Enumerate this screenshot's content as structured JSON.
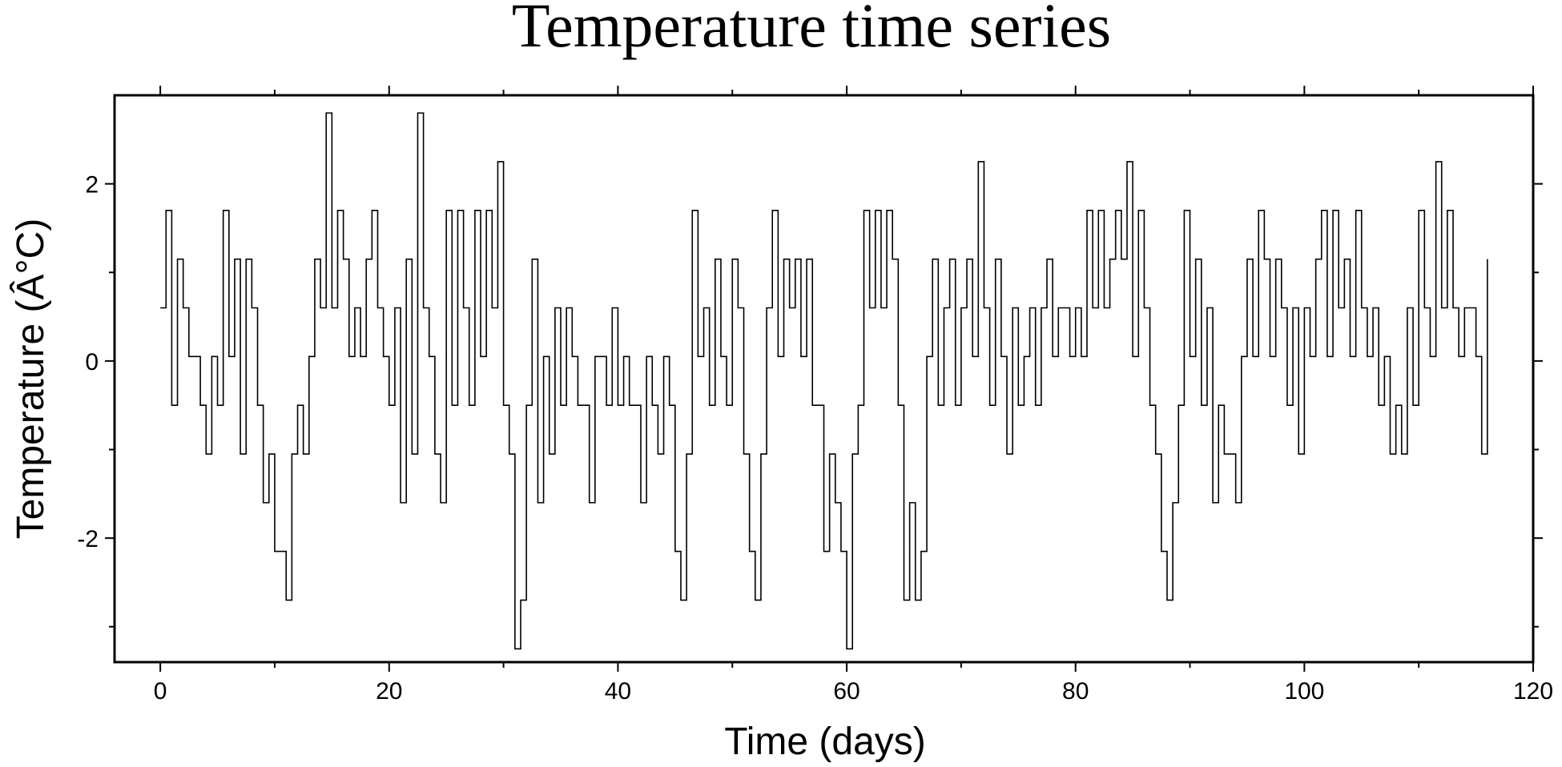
{
  "chart_data": {
    "type": "step",
    "title": "Temperature time series",
    "xlabel": "Time (days)",
    "ylabel": "Temperature (Â°C)",
    "xlim": [
      -4,
      120
    ],
    "ylim": [
      -3.4,
      3
    ],
    "xticks": [
      0,
      20,
      40,
      60,
      80,
      100,
      120
    ],
    "yticks": [
      -2,
      0,
      2
    ],
    "xticks_minor": [
      10,
      30,
      50,
      70,
      90,
      110
    ],
    "yticks_minor": [
      -3,
      -1,
      1
    ],
    "grid": false,
    "color": "#000000",
    "x": [
      0,
      0.5,
      1,
      1.5,
      2,
      2.5,
      3,
      3.5,
      4,
      4.5,
      5,
      5.5,
      6,
      6.5,
      7,
      7.5,
      8,
      8.5,
      9,
      9.5,
      10,
      10.5,
      11,
      11.5,
      12,
      12.5,
      13,
      13.5,
      14,
      14.5,
      15,
      15.5,
      16,
      16.5,
      17,
      17.5,
      18,
      18.5,
      19,
      19.5,
      20,
      20.5,
      21,
      21.5,
      22,
      22.5,
      23,
      23.5,
      24,
      24.5,
      25,
      25.5,
      26,
      26.5,
      27,
      27.5,
      28,
      28.5,
      29,
      29.5,
      30,
      30.5,
      31,
      31.5,
      32,
      32.5,
      33,
      33.5,
      34,
      34.5,
      35,
      35.5,
      36,
      36.5,
      37,
      37.5,
      38,
      38.5,
      39,
      39.5,
      40,
      40.5,
      41,
      41.5,
      42,
      42.5,
      43,
      43.5,
      44,
      44.5,
      45,
      45.5,
      46,
      46.5,
      47,
      47.5,
      48,
      48.5,
      49,
      49.5,
      50,
      50.5,
      51,
      51.5,
      52,
      52.5,
      53,
      53.5,
      54,
      54.5,
      55,
      55.5,
      56,
      56.5,
      57,
      57.5,
      58,
      58.5,
      59,
      59.5,
      60,
      60.5,
      61,
      61.5,
      62,
      62.5,
      63,
      63.5,
      64,
      64.5,
      65,
      65.5,
      66,
      66.5,
      67,
      67.5,
      68,
      68.5,
      69,
      69.5,
      70,
      70.5,
      71,
      71.5,
      72,
      72.5,
      73,
      73.5,
      74,
      74.5,
      75,
      75.5,
      76,
      76.5,
      77,
      77.5,
      78,
      78.5,
      79,
      79.5,
      80,
      80.5,
      81,
      81.5,
      82,
      82.5,
      83,
      83.5,
      84,
      84.5,
      85,
      85.5,
      86,
      86.5,
      87,
      87.5,
      88,
      88.5,
      89,
      89.5,
      90,
      90.5,
      91,
      91.5,
      92,
      92.5,
      93,
      93.5,
      94,
      94.5,
      95,
      95.5,
      96,
      96.5,
      97,
      97.5,
      98,
      98.5,
      99,
      99.5,
      100,
      100.5,
      101,
      101.5,
      102,
      102.5,
      103,
      103.5,
      104,
      104.5,
      105,
      105.5,
      106,
      106.5,
      107,
      107.5,
      108,
      108.5,
      109,
      109.5,
      110,
      110.5,
      111,
      111.5,
      112,
      112.5,
      113,
      113.5,
      114,
      114.5,
      115,
      115.5,
      116
    ],
    "values": [
      0.6,
      1.7,
      -0.5,
      1.15,
      0.6,
      0.05,
      0.05,
      -0.5,
      -1.05,
      0.05,
      -0.5,
      1.7,
      0.05,
      1.15,
      -1.05,
      1.15,
      0.6,
      -0.5,
      -1.6,
      -1.05,
      -2.15,
      -2.15,
      -2.7,
      -1.05,
      -0.5,
      -1.05,
      0.05,
      1.15,
      0.6,
      2.8,
      0.6,
      1.7,
      1.15,
      0.05,
      0.6,
      0.05,
      1.15,
      1.7,
      0.6,
      0.05,
      -0.5,
      0.6,
      -1.6,
      1.15,
      -1.05,
      2.8,
      0.6,
      0.05,
      -1.05,
      -1.6,
      1.7,
      -0.5,
      1.7,
      0.6,
      -0.5,
      1.7,
      0.05,
      1.7,
      0.6,
      2.25,
      -0.5,
      -1.05,
      -3.25,
      -2.7,
      -0.5,
      1.15,
      -1.6,
      0.05,
      -1.05,
      0.6,
      -0.5,
      0.6,
      0.05,
      -0.5,
      -0.5,
      -1.6,
      0.05,
      0.05,
      -0.5,
      0.6,
      -0.5,
      0.05,
      -0.5,
      -0.5,
      -1.6,
      0.05,
      -0.5,
      -1.05,
      0.05,
      -0.5,
      -2.15,
      -2.7,
      -1.05,
      1.7,
      0.05,
      0.6,
      -0.5,
      1.15,
      0.05,
      -0.5,
      1.15,
      0.6,
      -1.05,
      -2.15,
      -2.7,
      -1.05,
      0.6,
      1.7,
      0.05,
      1.15,
      0.6,
      1.15,
      0.05,
      1.15,
      -0.5,
      -0.5,
      -2.15,
      -1.05,
      -1.6,
      -2.15,
      -3.25,
      -1.05,
      -0.5,
      1.7,
      0.6,
      1.7,
      0.6,
      1.7,
      1.15,
      -0.5,
      -2.7,
      -1.6,
      -2.7,
      -2.15,
      0.05,
      1.15,
      -0.5,
      0.6,
      1.15,
      -0.5,
      0.6,
      1.15,
      0.05,
      2.25,
      0.6,
      -0.5,
      1.15,
      0.05,
      -1.05,
      0.6,
      -0.5,
      0.05,
      0.6,
      -0.5,
      0.6,
      1.15,
      0.05,
      0.6,
      0.6,
      0.05,
      0.6,
      0.05,
      1.7,
      0.6,
      1.7,
      0.6,
      1.15,
      1.7,
      1.15,
      2.25,
      0.05,
      1.7,
      0.6,
      -0.5,
      -1.05,
      -2.15,
      -2.7,
      -1.6,
      -0.5,
      1.7,
      0.05,
      1.15,
      -0.5,
      0.6,
      -1.6,
      -0.5,
      -1.05,
      -1.05,
      -1.6,
      0.05,
      1.15,
      0.05,
      1.7,
      1.15,
      0.05,
      1.15,
      0.6,
      -0.5,
      0.6,
      -1.05,
      0.6,
      0.05,
      1.15,
      1.7,
      0.05,
      1.7,
      0.6,
      1.15,
      0.05,
      1.7,
      0.6,
      0.05,
      0.6,
      -0.5,
      0.05,
      -1.05,
      -0.5,
      -1.05,
      0.6,
      -0.5,
      1.7,
      0.6,
      0.05,
      2.25,
      0.6,
      1.7,
      0.6,
      0.05,
      0.6,
      0.6,
      0.05,
      -1.05,
      1.15
    ]
  }
}
